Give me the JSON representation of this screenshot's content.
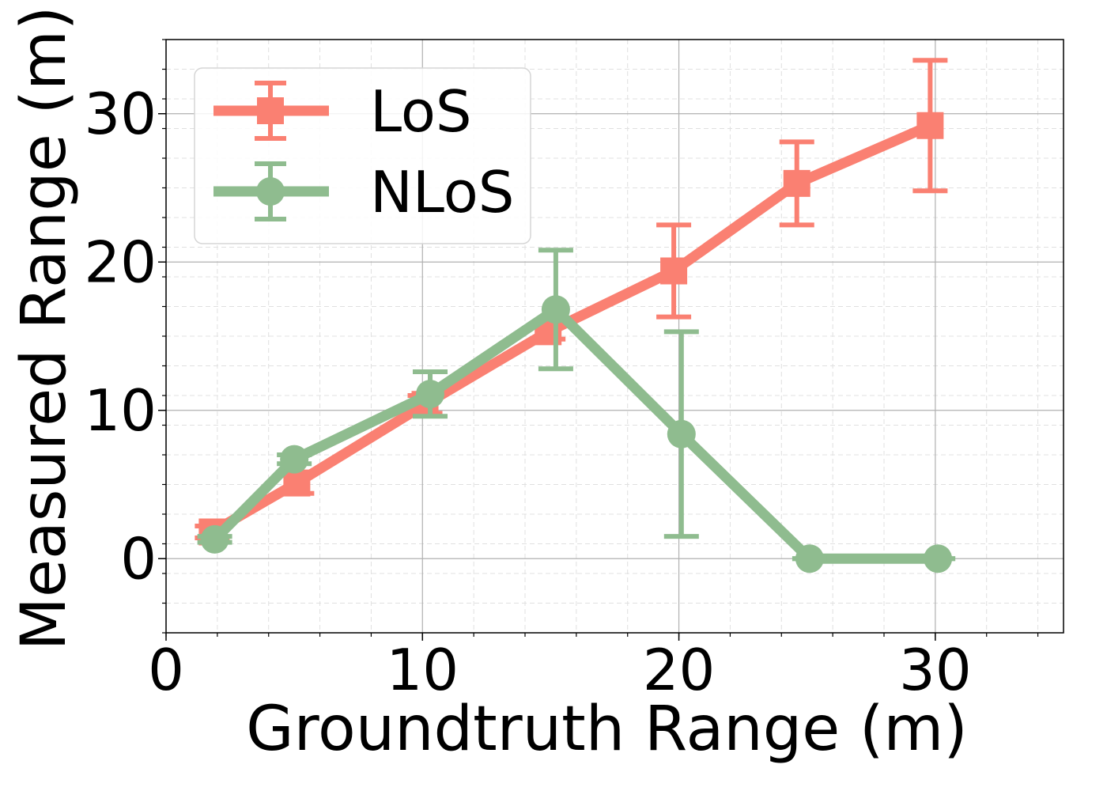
{
  "chart_data": {
    "type": "line",
    "title": "",
    "xlabel": "Groundtruth Range (m)",
    "ylabel": "Measured Range (m)",
    "xlim": [
      0,
      35
    ],
    "ylim": [
      -5,
      35
    ],
    "xticks": [
      0,
      10,
      20,
      30
    ],
    "xtick_labels": [
      "0",
      "10",
      "20",
      "30"
    ],
    "yticks": [
      0,
      10,
      20,
      30
    ],
    "ytick_labels": [
      "0",
      "10",
      "20",
      "30"
    ],
    "grid": true,
    "legend_position": "top-left",
    "series": [
      {
        "name": "LoS",
        "color": "#FA8072",
        "marker": "square",
        "points": [
          {
            "x": 1.8,
            "y": 1.8,
            "err": 0.4
          },
          {
            "x": 5.1,
            "y": 5.1,
            "err": 0.7
          },
          {
            "x": 10.1,
            "y": 10.4,
            "err": 0.6
          },
          {
            "x": 14.9,
            "y": 15.3,
            "err": 0.5
          },
          {
            "x": 19.8,
            "y": 19.4,
            "err": 3.1
          },
          {
            "x": 24.6,
            "y": 25.3,
            "err": 2.8
          },
          {
            "x": 29.8,
            "y": 29.2,
            "err": 4.4
          }
        ]
      },
      {
        "name": "NLoS",
        "color": "#8FBC8F",
        "marker": "circle",
        "points": [
          {
            "x": 1.9,
            "y": 1.3,
            "err": 0.2
          },
          {
            "x": 5.0,
            "y": 6.7,
            "err": 0.3
          },
          {
            "x": 10.3,
            "y": 11.1,
            "err": 1.5
          },
          {
            "x": 15.2,
            "y": 16.8,
            "err": 4.0
          },
          {
            "x": 20.1,
            "y": 8.4,
            "err": 6.9
          },
          {
            "x": 25.1,
            "y": 0.0,
            "err": 0.0
          },
          {
            "x": 30.1,
            "y": 0.0,
            "err": 0.0
          }
        ]
      }
    ]
  }
}
